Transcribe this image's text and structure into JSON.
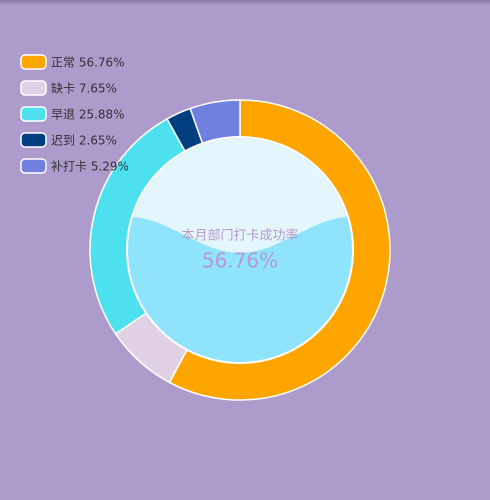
{
  "chart_data": {
    "type": "donut",
    "categories": [
      "正常",
      "缺卡",
      "早退",
      "迟到",
      "补打卡"
    ],
    "values": [
      56.76,
      7.65,
      25.88,
      2.65,
      5.29
    ],
    "value_labels": [
      "正常 56.76%",
      "缺卡 7.65%",
      "早退 25.88%",
      "迟到 2.65%",
      "补打卡 5.29%"
    ],
    "colors": [
      "#ffa500",
      "#e0d2e4",
      "#4de0ee",
      "#003f7f",
      "#7080de"
    ],
    "center_title": "本月部门打卡成功率",
    "center_value": 56.76,
    "center_value_label": "56.76%",
    "legend": "top-left"
  }
}
